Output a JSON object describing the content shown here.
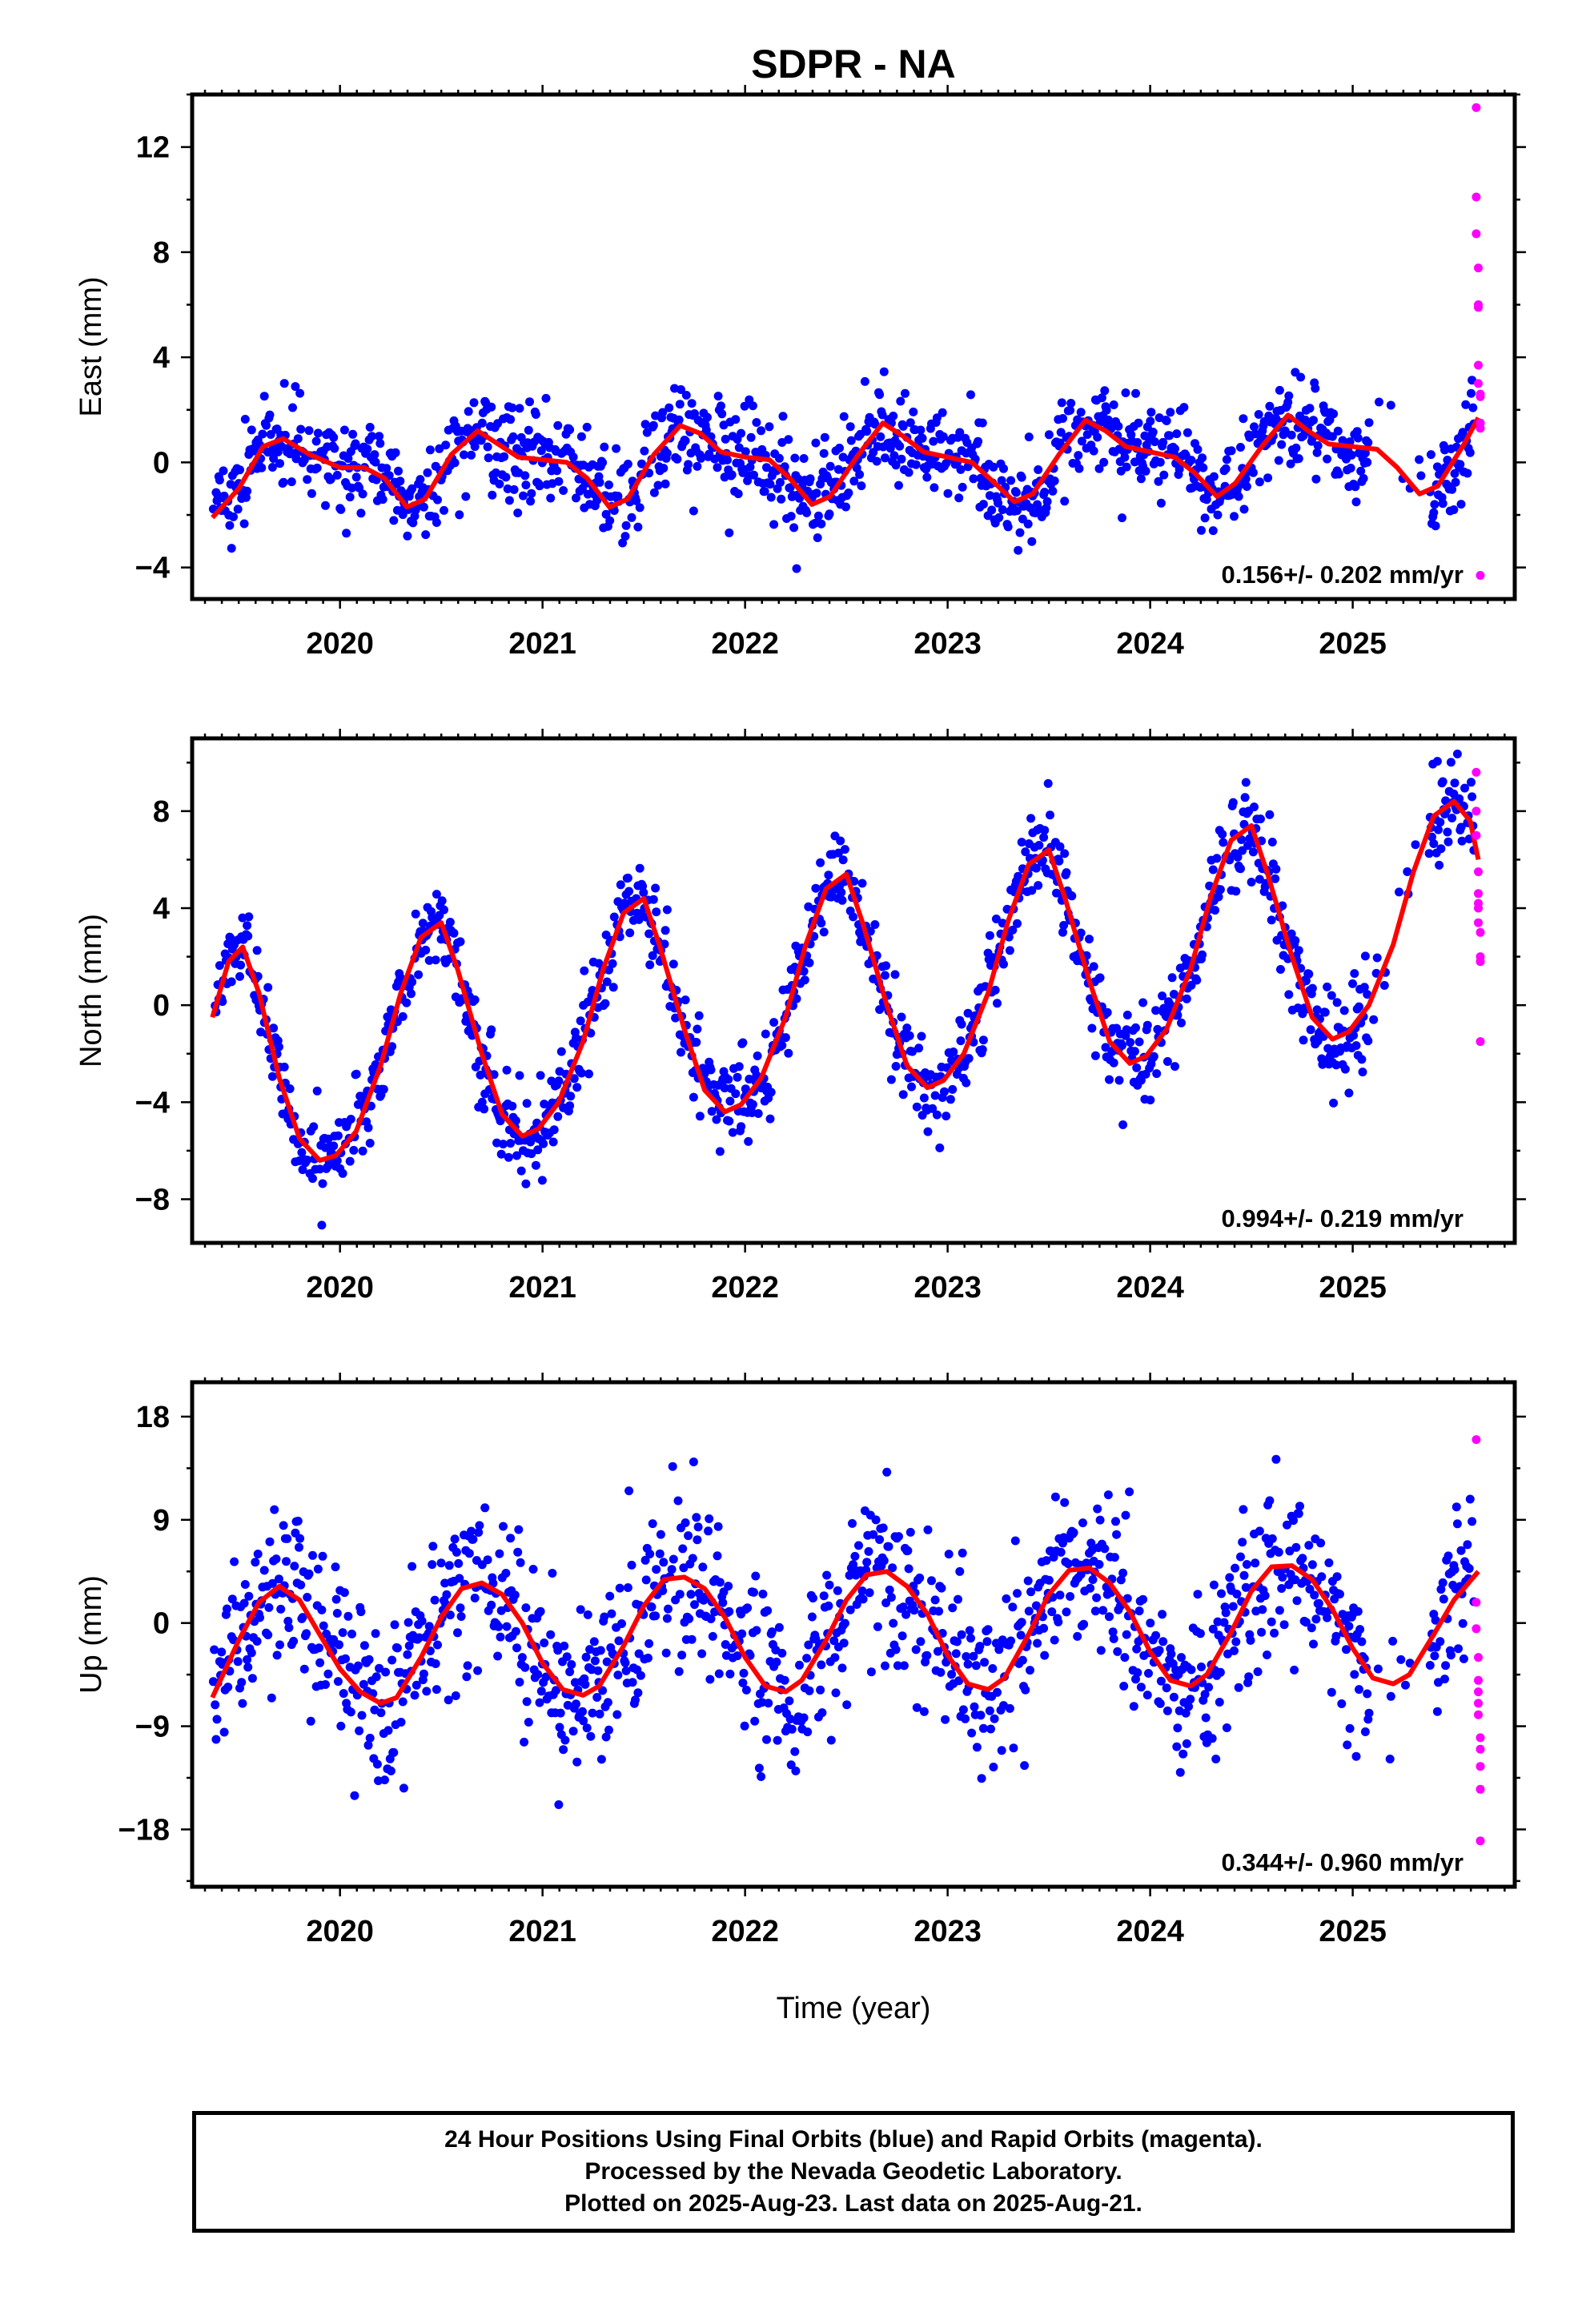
{
  "title": "SDPR - NA",
  "xlabel": "Time (year)",
  "caption": {
    "line1": "24 Hour Positions Using Final Orbits (blue) and Rapid Orbits (magenta).",
    "line2": "Processed by the Nevada Geodetic Laboratory.",
    "line3": "Plotted on 2025-Aug-23. Last data on 2025-Aug-21."
  },
  "colors": {
    "final_orbits": "#0000ff",
    "rapid_orbits": "#ff00ff",
    "model_fit": "#ff0000",
    "frame": "#000000"
  },
  "chart_data": [
    {
      "type": "scatter",
      "panel": "East",
      "ylabel": "East (mm)",
      "xlim": [
        2019.27,
        2025.8
      ],
      "ylim": [
        -5.2,
        14.0
      ],
      "yticks": [
        -4,
        0,
        4,
        8,
        12
      ],
      "xticks": [
        2020,
        2021,
        2022,
        2023,
        2024,
        2025
      ],
      "grid": false,
      "rate_label": "0.156+/- 0.202 mm/yr",
      "fit": {
        "x": [
          2019.37,
          2019.5,
          2019.62,
          2019.72,
          2019.85,
          2020.0,
          2020.12,
          2020.22,
          2020.33,
          2020.42,
          2020.55,
          2020.68,
          2020.78,
          2020.88,
          2021.0,
          2021.12,
          2021.22,
          2021.33,
          2021.42,
          2021.55,
          2021.68,
          2021.78,
          2021.88,
          2022.0,
          2022.12,
          2022.22,
          2022.33,
          2022.42,
          2022.55,
          2022.68,
          2022.78,
          2022.88,
          2023.0,
          2023.12,
          2023.22,
          2023.33,
          2023.42,
          2023.55,
          2023.68,
          2023.78,
          2023.88,
          2024.0,
          2024.12,
          2024.22,
          2024.33,
          2024.42,
          2024.55,
          2024.68,
          2024.78,
          2024.88,
          2025.0,
          2025.12,
          2025.22,
          2025.33,
          2025.42,
          2025.55,
          2025.62
        ],
        "y": [
          -2.1,
          -1.0,
          0.6,
          0.9,
          0.3,
          -0.2,
          -0.2,
          -0.6,
          -1.7,
          -1.4,
          0.3,
          1.2,
          0.7,
          0.2,
          0.1,
          0.0,
          -0.6,
          -1.7,
          -1.4,
          0.3,
          1.4,
          1.1,
          0.4,
          0.2,
          0.1,
          -0.6,
          -1.6,
          -1.3,
          0.2,
          1.5,
          1.0,
          0.4,
          0.2,
          0.0,
          -0.7,
          -1.5,
          -1.2,
          0.3,
          1.6,
          1.2,
          0.6,
          0.4,
          0.2,
          -0.4,
          -1.3,
          -0.8,
          0.6,
          1.8,
          1.2,
          0.7,
          0.6,
          0.5,
          -0.2,
          -1.2,
          -0.9,
          0.7,
          1.7
        ]
      },
      "rapid": {
        "x": [
          2025.61,
          2025.61,
          2025.61,
          2025.62,
          2025.62,
          2025.62,
          2025.62,
          2025.62,
          2025.63,
          2025.63,
          2025.63,
          2025.63,
          2025.63
        ],
        "y": [
          13.5,
          10.1,
          8.7,
          7.4,
          6.0,
          5.9,
          3.7,
          3.0,
          2.6,
          2.5,
          1.5,
          1.3,
          -4.3
        ]
      }
    },
    {
      "type": "scatter",
      "panel": "North",
      "ylabel": "North (mm)",
      "xlim": [
        2019.27,
        2025.8
      ],
      "ylim": [
        -9.8,
        11.0
      ],
      "yticks": [
        -8,
        -4,
        0,
        4,
        8
      ],
      "xticks": [
        2020,
        2021,
        2022,
        2023,
        2024,
        2025
      ],
      "grid": false,
      "rate_label": "0.994+/- 0.219 mm/yr",
      "fit": {
        "x": [
          2019.37,
          2019.45,
          2019.52,
          2019.6,
          2019.7,
          2019.8,
          2019.9,
          2019.98,
          2020.08,
          2020.2,
          2020.3,
          2020.4,
          2020.5,
          2020.58,
          2020.7,
          2020.8,
          2020.9,
          2020.98,
          2021.08,
          2021.2,
          2021.3,
          2021.4,
          2021.5,
          2021.58,
          2021.7,
          2021.8,
          2021.9,
          2021.98,
          2022.08,
          2022.2,
          2022.3,
          2022.4,
          2022.5,
          2022.58,
          2022.7,
          2022.8,
          2022.9,
          2022.98,
          2023.08,
          2023.2,
          2023.3,
          2023.4,
          2023.5,
          2023.58,
          2023.7,
          2023.8,
          2023.9,
          2023.98,
          2024.08,
          2024.2,
          2024.3,
          2024.4,
          2024.5,
          2024.58,
          2024.7,
          2024.8,
          2024.9,
          2024.98,
          2025.08,
          2025.2,
          2025.3,
          2025.4,
          2025.5,
          2025.58,
          2025.62
        ],
        "y": [
          -0.5,
          1.8,
          2.4,
          0.5,
          -3.0,
          -5.5,
          -6.4,
          -6.2,
          -5.2,
          -2.5,
          0.5,
          2.8,
          3.4,
          1.5,
          -2.0,
          -4.5,
          -5.4,
          -5.1,
          -4.0,
          -1.5,
          1.5,
          3.8,
          4.4,
          2.4,
          -1.0,
          -3.5,
          -4.4,
          -4.1,
          -3.0,
          -0.5,
          2.5,
          4.8,
          5.4,
          3.4,
          0.0,
          -2.5,
          -3.4,
          -3.1,
          -2.0,
          0.5,
          3.5,
          5.8,
          6.4,
          4.4,
          1.0,
          -1.5,
          -2.4,
          -2.1,
          -1.0,
          1.5,
          4.5,
          6.8,
          7.4,
          5.4,
          2.0,
          -0.5,
          -1.4,
          -1.1,
          0.0,
          2.5,
          5.5,
          7.8,
          8.4,
          7.6,
          6.0
        ]
      },
      "rapid": {
        "x": [
          2025.61,
          2025.61,
          2025.61,
          2025.62,
          2025.62,
          2025.62,
          2025.62,
          2025.62,
          2025.63,
          2025.63,
          2025.63,
          2025.63
        ],
        "y": [
          9.6,
          8.0,
          7.0,
          5.5,
          4.6,
          4.2,
          4.0,
          3.4,
          3.0,
          2.0,
          1.8,
          -1.5
        ]
      }
    },
    {
      "type": "scatter",
      "panel": "Up",
      "ylabel": "Up (mm)",
      "xlim": [
        2019.27,
        2025.8
      ],
      "ylim": [
        -23.0,
        21.0
      ],
      "yticks": [
        -18,
        -9,
        0,
        9,
        18
      ],
      "xticks": [
        2020,
        2021,
        2022,
        2023,
        2024,
        2025
      ],
      "grid": false,
      "rate_label": "0.344+/- 0.960 mm/yr",
      "fit": {
        "x": [
          2019.37,
          2019.5,
          2019.6,
          2019.7,
          2019.8,
          2019.9,
          2020.0,
          2020.1,
          2020.2,
          2020.28,
          2020.4,
          2020.5,
          2020.6,
          2020.7,
          2020.8,
          2020.9,
          2021.0,
          2021.1,
          2021.2,
          2021.28,
          2021.4,
          2021.5,
          2021.6,
          2021.7,
          2021.8,
          2021.9,
          2022.0,
          2022.1,
          2022.2,
          2022.28,
          2022.4,
          2022.5,
          2022.6,
          2022.7,
          2022.8,
          2022.9,
          2023.0,
          2023.1,
          2023.2,
          2023.28,
          2023.4,
          2023.5,
          2023.6,
          2023.7,
          2023.8,
          2023.9,
          2024.0,
          2024.1,
          2024.2,
          2024.28,
          2024.4,
          2024.5,
          2024.6,
          2024.7,
          2024.8,
          2024.9,
          2025.0,
          2025.1,
          2025.2,
          2025.28,
          2025.4,
          2025.5,
          2025.62
        ],
        "y": [
          -6.5,
          -1.5,
          1.8,
          3.2,
          2.0,
          -1.0,
          -4.0,
          -6.0,
          -7.0,
          -6.5,
          -3.0,
          0.5,
          3.0,
          3.5,
          2.5,
          0.0,
          -3.5,
          -5.8,
          -6.3,
          -5.5,
          -2.0,
          1.5,
          3.8,
          4.0,
          3.0,
          0.5,
          -3.0,
          -5.5,
          -6.0,
          -5.0,
          -1.5,
          2.0,
          4.2,
          4.5,
          3.2,
          0.8,
          -2.8,
          -5.3,
          -5.8,
          -4.8,
          -1.0,
          2.5,
          4.6,
          4.8,
          3.5,
          1.0,
          -2.5,
          -5.0,
          -5.5,
          -4.5,
          -0.8,
          2.8,
          4.9,
          5.0,
          3.8,
          1.2,
          -2.2,
          -4.8,
          -5.3,
          -4.5,
          -1.0,
          2.0,
          4.5
        ]
      },
      "rapid": {
        "x": [
          2025.61,
          2025.61,
          2025.61,
          2025.62,
          2025.62,
          2025.62,
          2025.62,
          2025.62,
          2025.63,
          2025.63,
          2025.63,
          2025.63,
          2025.63
        ],
        "y": [
          16.0,
          1.8,
          -0.5,
          -3.0,
          -5.0,
          -6.0,
          -7.0,
          -8.0,
          -10.0,
          -11.0,
          -12.5,
          -14.5,
          -19.0
        ]
      }
    }
  ]
}
